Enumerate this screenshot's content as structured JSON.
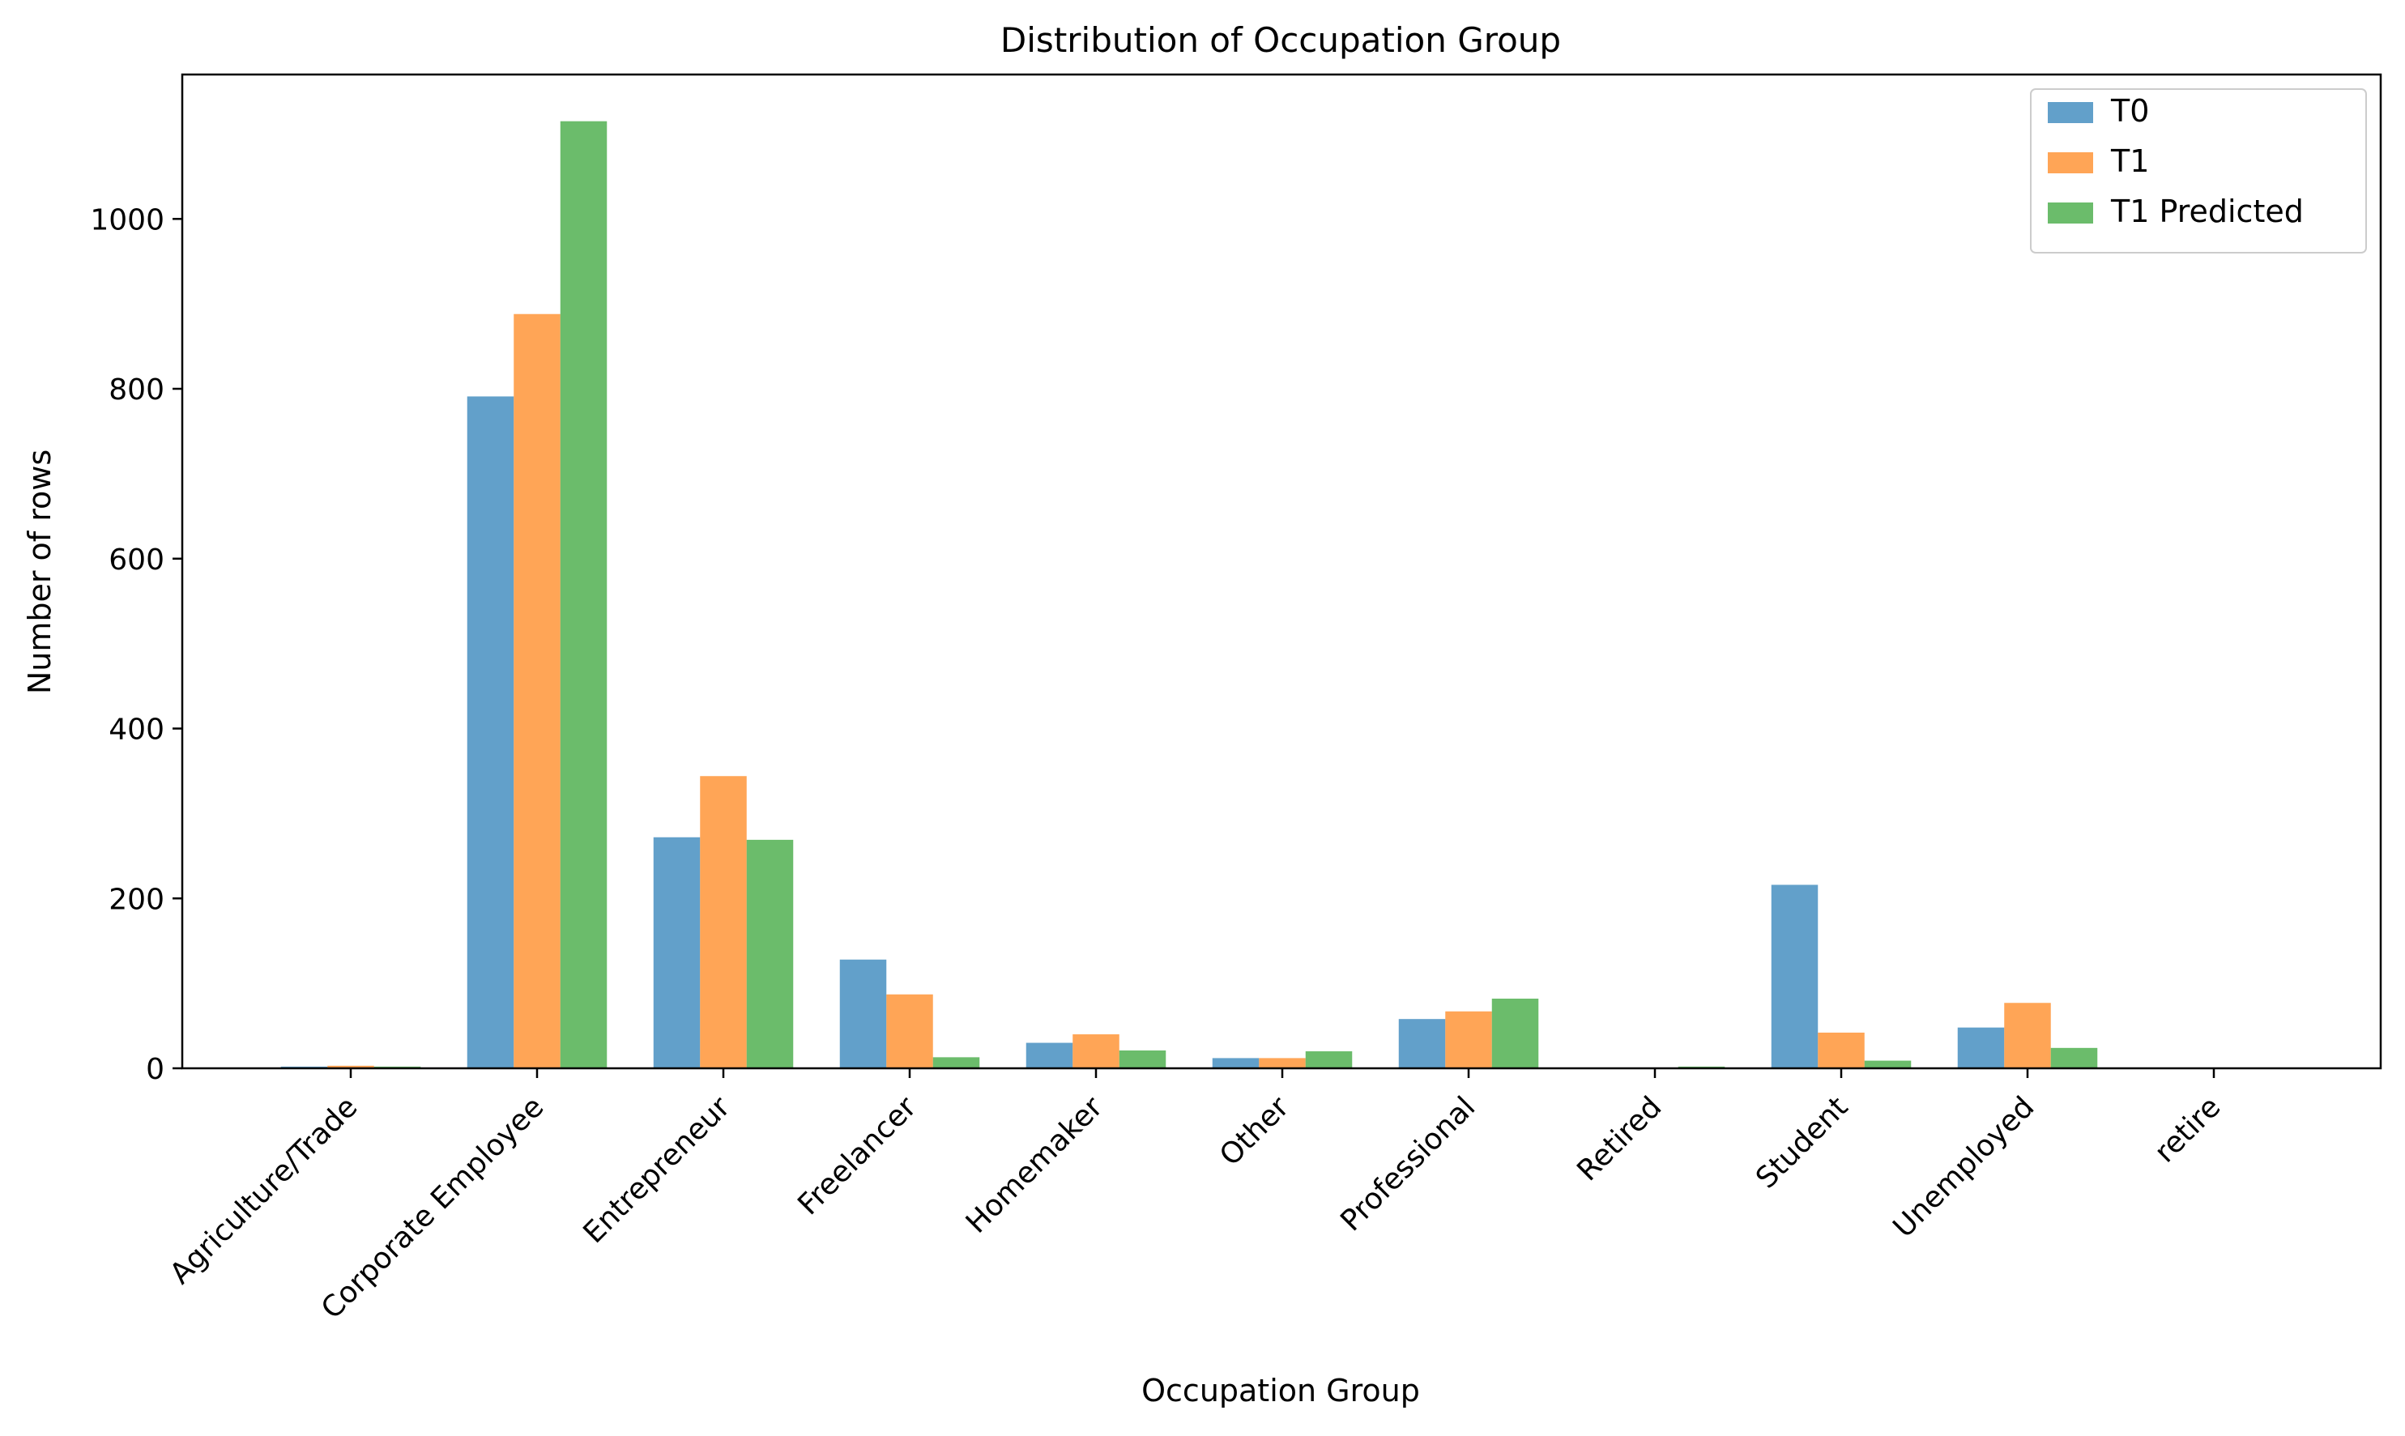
{
  "chart_data": {
    "type": "bar",
    "title": "Distribution of Occupation Group",
    "xlabel": "Occupation Group",
    "ylabel": "Number of rows",
    "categories": [
      "Agriculture/Trade",
      "Corporate Employee",
      "Entrepreneur",
      "Freelancer",
      "Homemaker",
      "Other",
      "Professional",
      "Retired",
      "Student",
      "Unemployed",
      "retire"
    ],
    "series": [
      {
        "name": "T0",
        "color": "#1f77b4",
        "values": [
          2,
          791,
          272,
          128,
          30,
          12,
          58,
          0,
          216,
          48,
          0
        ]
      },
      {
        "name": "T1",
        "color": "#ff7f0e",
        "values": [
          3,
          888,
          344,
          87,
          40,
          12,
          67,
          0,
          42,
          77,
          0
        ]
      },
      {
        "name": "T1 Predicted",
        "color": "#2ca02c",
        "values": [
          2,
          1115,
          269,
          13,
          21,
          20,
          82,
          2,
          9,
          24,
          0
        ]
      }
    ],
    "ylim": [
      0,
      1170
    ],
    "yticks": [
      0,
      200,
      400,
      600,
      800,
      1000
    ],
    "bar_opacity": 0.7,
    "grid": false,
    "legend_position": "top-right"
  }
}
